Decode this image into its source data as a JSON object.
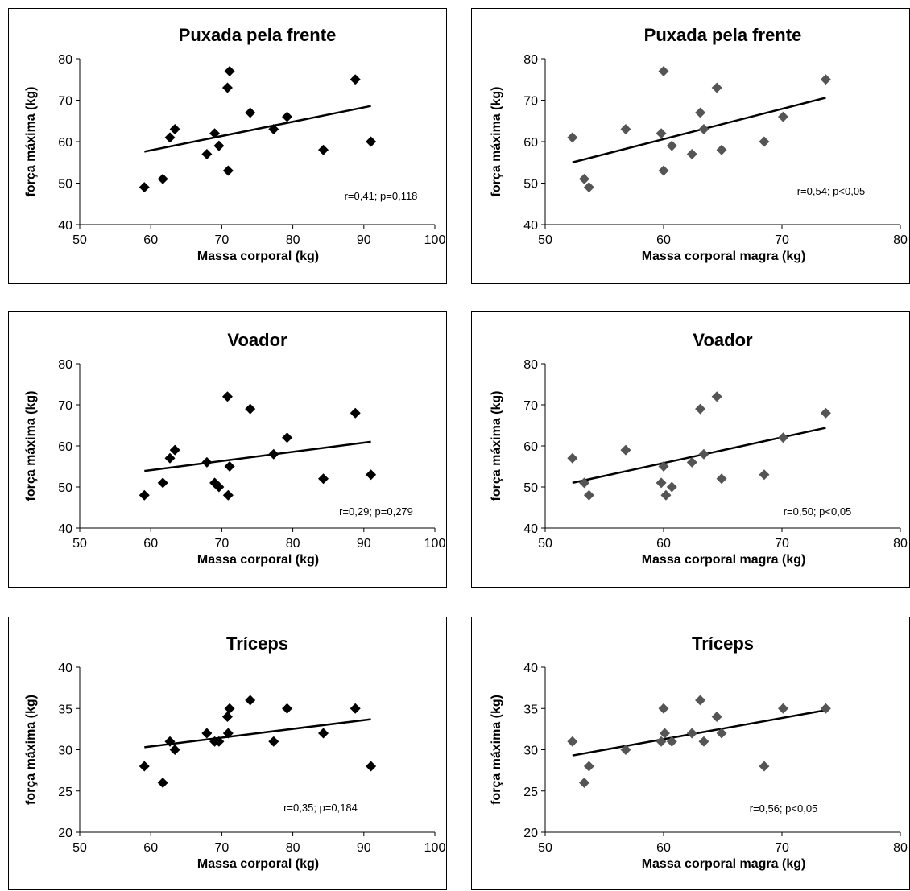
{
  "chart_data": [
    {
      "type": "scatter",
      "title": "Puxada pela frente",
      "xlabel": "Massa corporal (kg)",
      "ylabel": "força máxima (kg)",
      "xlim": [
        50,
        100
      ],
      "ylim": [
        40,
        80
      ],
      "xticks": [
        50,
        60,
        70,
        80,
        90,
        100
      ],
      "yticks": [
        40,
        50,
        60,
        70,
        80
      ],
      "marker_color": "#000000",
      "x": [
        59.1,
        61.7,
        62.7,
        63.4,
        67.9,
        69.0,
        69.6,
        70.8,
        70.9,
        71.1,
        74.0,
        77.3,
        79.2,
        84.3,
        88.8,
        91.0
      ],
      "y": [
        49,
        51,
        61,
        63,
        57,
        62,
        59,
        73,
        53,
        77,
        67,
        63,
        66,
        58,
        75,
        60
      ],
      "trendline": {
        "x": [
          59.1,
          91.0
        ],
        "y": [
          57.6,
          68.6
        ]
      },
      "annotation": "r=0,41; p=0,118"
    },
    {
      "type": "scatter",
      "title": "Puxada pela frente",
      "xlabel": "Massa corporal magra (kg)",
      "ylabel": "força máxima (kg)",
      "xlim": [
        50,
        80
      ],
      "ylim": [
        40,
        80
      ],
      "xticks": [
        50,
        60,
        70,
        80
      ],
      "yticks": [
        40,
        50,
        60,
        70,
        80
      ],
      "marker_color": "#555555",
      "x": [
        52.3,
        53.3,
        53.7,
        56.8,
        59.8,
        60.0,
        60.0,
        60.7,
        62.4,
        63.1,
        63.4,
        64.5,
        64.9,
        68.5,
        70.1,
        73.7
      ],
      "y": [
        61,
        51,
        49,
        63,
        62,
        77,
        53,
        59,
        57,
        67,
        63,
        73,
        58,
        60,
        66,
        75
      ],
      "trendline": {
        "x": [
          52.3,
          73.7
        ],
        "y": [
          55.0,
          70.6
        ]
      },
      "annotation": "r=0,54; p<0,05"
    },
    {
      "type": "scatter",
      "title": "Voador",
      "xlabel": "Massa corporal (kg)",
      "ylabel": "força máxima (kg)",
      "xlim": [
        50,
        100
      ],
      "ylim": [
        40,
        80
      ],
      "xticks": [
        50,
        60,
        70,
        80,
        90,
        100
      ],
      "yticks": [
        40,
        50,
        60,
        70,
        80
      ],
      "marker_color": "#000000",
      "x": [
        59.1,
        61.7,
        62.7,
        63.4,
        67.9,
        69.0,
        69.6,
        70.8,
        70.9,
        71.1,
        74.0,
        77.3,
        79.2,
        84.3,
        88.8,
        91.0
      ],
      "y": [
        48,
        51,
        57,
        59,
        56,
        51,
        50,
        72,
        48,
        55,
        69,
        58,
        62,
        52,
        68,
        53
      ],
      "trendline": {
        "x": [
          59.1,
          91.0
        ],
        "y": [
          53.9,
          61.0
        ]
      },
      "annotation": "r=0,29; p=0,279"
    },
    {
      "type": "scatter",
      "title": "Voador",
      "xlabel": "Massa corporal magra (kg)",
      "ylabel": "força máxima (kg)",
      "xlim": [
        50,
        80
      ],
      "ylim": [
        40,
        80
      ],
      "xticks": [
        50,
        60,
        70,
        80
      ],
      "yticks": [
        40,
        50,
        60,
        70,
        80
      ],
      "marker_color": "#555555",
      "x": [
        52.3,
        53.3,
        53.7,
        56.8,
        59.8,
        60.0,
        60.2,
        60.7,
        62.4,
        63.1,
        63.4,
        64.5,
        64.9,
        68.5,
        70.1,
        73.7
      ],
      "y": [
        57,
        51,
        48,
        59,
        51,
        55,
        48,
        50,
        56,
        69,
        58,
        72,
        52,
        53,
        62,
        68
      ],
      "trendline": {
        "x": [
          52.3,
          73.7
        ],
        "y": [
          51.0,
          64.4
        ]
      },
      "annotation": "r=0,50; p<0,05"
    },
    {
      "type": "scatter",
      "title": "Tríceps",
      "xlabel": "Massa corporal (kg)",
      "ylabel": "força máxima (kg)",
      "xlim": [
        50,
        100
      ],
      "ylim": [
        20,
        40
      ],
      "xticks": [
        50,
        60,
        70,
        80,
        90,
        100
      ],
      "yticks": [
        20,
        25,
        30,
        35,
        40
      ],
      "marker_color": "#000000",
      "x": [
        59.1,
        61.7,
        62.7,
        63.4,
        67.9,
        69.0,
        69.6,
        70.8,
        70.9,
        71.1,
        74.0,
        77.3,
        79.2,
        84.3,
        88.8,
        91.0
      ],
      "y": [
        28,
        26,
        31,
        30,
        32,
        31,
        31,
        34,
        32,
        35,
        36,
        31,
        35,
        32,
        35,
        28
      ],
      "trendline": {
        "x": [
          59.1,
          91.0
        ],
        "y": [
          30.3,
          33.7
        ]
      },
      "annotation": "r=0,35; p=0,184"
    },
    {
      "type": "scatter",
      "title": "Tríceps",
      "xlabel": "Massa corporal magra (kg)",
      "ylabel": "força máxima (kg)",
      "xlim": [
        50,
        80
      ],
      "ylim": [
        20,
        40
      ],
      "xticks": [
        50,
        60,
        70,
        80
      ],
      "yticks": [
        20,
        25,
        30,
        35,
        40
      ],
      "marker_color": "#555555",
      "x": [
        52.3,
        53.3,
        53.7,
        56.8,
        59.8,
        60.0,
        60.1,
        60.7,
        62.4,
        63.1,
        63.4,
        64.5,
        64.9,
        68.5,
        70.1,
        73.7
      ],
      "y": [
        31,
        26,
        28,
        30,
        31,
        35,
        32,
        31,
        32,
        36,
        31,
        34,
        32,
        28,
        35,
        35
      ],
      "trendline": {
        "x": [
          52.3,
          73.7
        ],
        "y": [
          29.3,
          34.8
        ]
      },
      "annotation": "r=0,56; p<0,05"
    }
  ]
}
